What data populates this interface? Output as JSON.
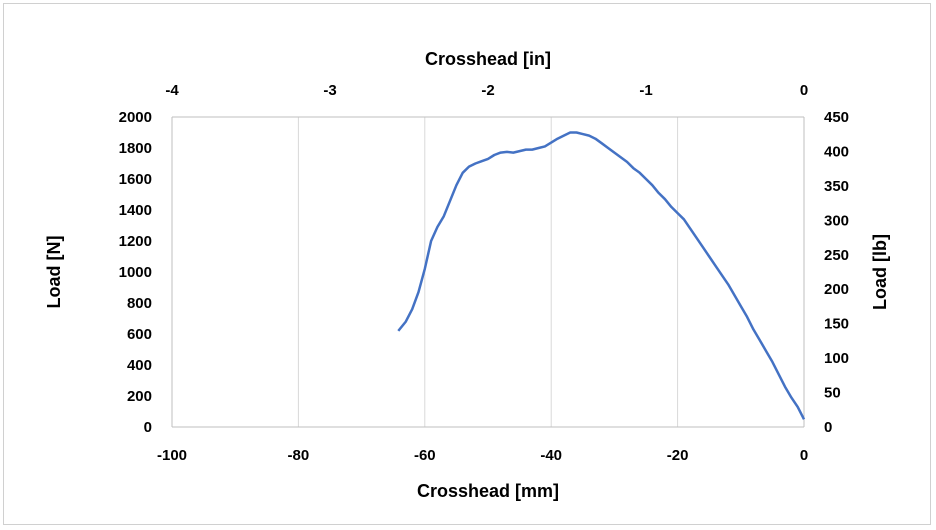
{
  "chart_data": {
    "type": "line",
    "title": "",
    "xlabel": "Crosshead [mm]",
    "ylabel": "Load [N]",
    "x2label": "Crosshead [in]",
    "y2label": "Load [lb]",
    "xlim": [
      -100,
      0
    ],
    "ylim": [
      0,
      2000
    ],
    "x2lim": [
      -4,
      0
    ],
    "y2lim": [
      0,
      450
    ],
    "x_ticks": [
      "-100",
      "-80",
      "-60",
      "-40",
      "-20",
      "0"
    ],
    "y_ticks": [
      "0",
      "200",
      "400",
      "600",
      "800",
      "1000",
      "1200",
      "1400",
      "1600",
      "1800",
      "2000"
    ],
    "x2_ticks": [
      "-4",
      "-3",
      "-2",
      "-1",
      "0"
    ],
    "y2_ticks": [
      "0",
      "50",
      "100",
      "150",
      "200",
      "250",
      "300",
      "350",
      "400",
      "450"
    ],
    "grid": "vertical",
    "legend": "none",
    "line_color": "#4472C4",
    "series": [
      {
        "x": [
          -64.2,
          -63,
          -62,
          -61,
          -60,
          -59,
          -58,
          -57,
          -56,
          -55,
          -54,
          -53,
          -52,
          -51,
          -50,
          -49,
          -48,
          -47,
          -46,
          -45,
          -44,
          -43,
          -42,
          -41,
          -40,
          -39,
          -38,
          -37,
          -36,
          -35,
          -34,
          -33,
          -32,
          -31,
          -30,
          -29,
          -28,
          -27,
          -26,
          -25,
          -24,
          -23,
          -22,
          -21,
          -20,
          -19,
          -18,
          -17,
          -16,
          -15,
          -14,
          -13,
          -12,
          -11,
          -10,
          -9,
          -8,
          -7,
          -6,
          -5,
          -4,
          -3,
          -2,
          -1,
          0
        ],
        "y": [
          620,
          680,
          760,
          870,
          1020,
          1200,
          1290,
          1360,
          1460,
          1560,
          1640,
          1680,
          1700,
          1715,
          1730,
          1755,
          1770,
          1775,
          1770,
          1780,
          1790,
          1790,
          1800,
          1810,
          1835,
          1860,
          1880,
          1900,
          1900,
          1890,
          1880,
          1860,
          1830,
          1800,
          1770,
          1740,
          1710,
          1670,
          1640,
          1600,
          1560,
          1510,
          1470,
          1420,
          1380,
          1340,
          1280,
          1220,
          1160,
          1100,
          1040,
          980,
          920,
          850,
          780,
          710,
          630,
          560,
          490,
          420,
          340,
          260,
          190,
          130,
          50
        ]
      }
    ]
  }
}
